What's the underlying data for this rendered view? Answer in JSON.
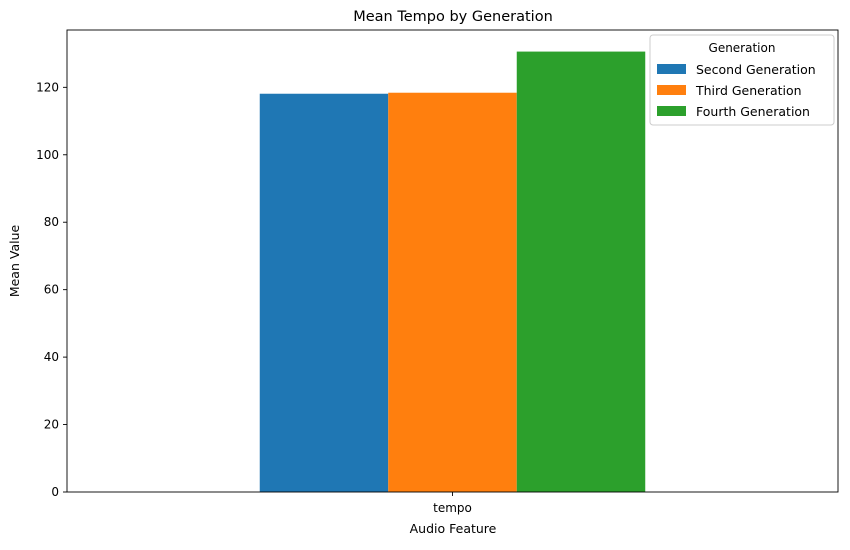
{
  "chart_data": {
    "type": "bar",
    "title": "Mean Tempo by Generation",
    "xlabel": "Audio Feature",
    "ylabel": "Mean Value",
    "categories": [
      "tempo"
    ],
    "series": [
      {
        "name": "Second Generation",
        "values": [
          118.1
        ],
        "color": "#1f77b4"
      },
      {
        "name": "Third Generation",
        "values": [
          118.4
        ],
        "color": "#ff7f0e"
      },
      {
        "name": "Fourth Generation",
        "values": [
          130.6
        ],
        "color": "#2ca02c"
      }
    ],
    "ylim": [
      0,
      137
    ],
    "yticks": [
      "0",
      "20",
      "40",
      "60",
      "80",
      "100",
      "120"
    ],
    "grid": false,
    "legend": {
      "title": "Generation",
      "placement": "top-right"
    }
  }
}
